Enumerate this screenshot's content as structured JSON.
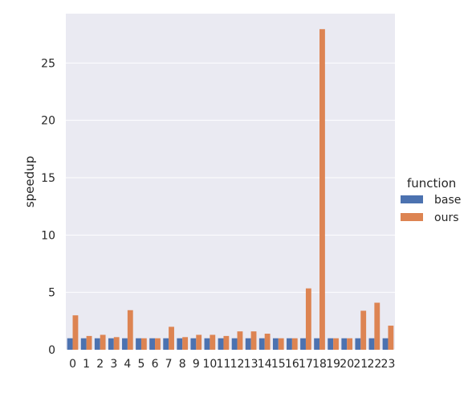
{
  "chart_data": {
    "type": "bar",
    "categories": [
      "0",
      "1",
      "2",
      "3",
      "4",
      "5",
      "6",
      "7",
      "8",
      "9",
      "10",
      "11",
      "12",
      "13",
      "14",
      "15",
      "16",
      "17",
      "18",
      "19",
      "20",
      "21",
      "22",
      "23"
    ],
    "series": [
      {
        "name": "base",
        "color": "#4c72b0",
        "values": [
          1,
          1,
          1,
          1,
          1,
          1,
          1,
          1,
          1,
          1,
          1,
          1,
          1,
          1,
          1,
          1,
          1,
          1,
          1,
          1,
          1,
          1,
          1,
          1
        ]
      },
      {
        "name": "ours",
        "color": "#dd8452",
        "values": [
          3.0,
          1.2,
          1.3,
          1.1,
          3.45,
          1.0,
          1.0,
          2.0,
          1.1,
          1.3,
          1.3,
          1.2,
          1.6,
          1.6,
          1.4,
          1.0,
          1.0,
          5.35,
          27.95,
          1.0,
          1.0,
          3.4,
          4.1,
          2.1
        ]
      }
    ],
    "xlabel": "",
    "ylabel": "speedup",
    "ylim": [
      0,
      29.3
    ],
    "yticks": [
      0,
      5,
      10,
      15,
      20,
      25
    ],
    "grid": true,
    "legend": {
      "title": "function",
      "placement": "right"
    },
    "background_color": "#eaeaf2",
    "grid_color": "#ffffff"
  }
}
